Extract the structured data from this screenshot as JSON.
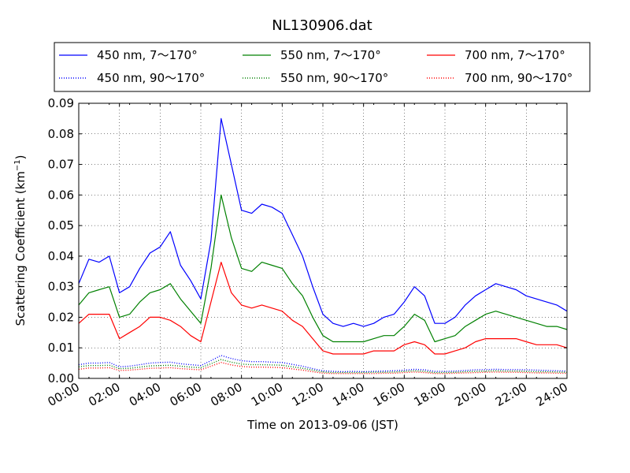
{
  "chart_data": {
    "type": "line",
    "title": "NL130906.dat",
    "xlabel": "Time on 2013-09-06 (JST)",
    "ylabel": "Scattering Coefficient (km",
    "ylabel_sup": "−1",
    "ylabel_close": ")",
    "xlim": [
      "00:00",
      "24:00"
    ],
    "ylim": [
      0,
      0.09
    ],
    "x_ticks": [
      "00:00",
      "02:00",
      "04:00",
      "06:00",
      "08:00",
      "10:00",
      "12:00",
      "14:00",
      "16:00",
      "18:00",
      "20:00",
      "22:00",
      "24:00"
    ],
    "y_ticks": [
      "0.00",
      "0.01",
      "0.02",
      "0.03",
      "0.04",
      "0.05",
      "0.06",
      "0.07",
      "0.08",
      "0.09"
    ],
    "grid": true,
    "legend_position": "top-center",
    "x": [
      "00:00",
      "00:30",
      "01:00",
      "01:30",
      "02:00",
      "02:30",
      "03:00",
      "03:30",
      "04:00",
      "04:30",
      "05:00",
      "05:30",
      "06:00",
      "06:30",
      "07:00",
      "07:30",
      "08:00",
      "08:30",
      "09:00",
      "09:30",
      "10:00",
      "10:30",
      "11:00",
      "11:30",
      "12:00",
      "12:30",
      "13:00",
      "13:30",
      "14:00",
      "14:30",
      "15:00",
      "15:30",
      "16:00",
      "16:30",
      "17:00",
      "17:30",
      "18:00",
      "18:30",
      "19:00",
      "19:30",
      "20:00",
      "20:30",
      "21:00",
      "21:30",
      "22:00",
      "22:30",
      "23:00",
      "23:30",
      "24:00"
    ],
    "series": [
      {
        "name": "450 nm, 7～170°",
        "color": "#0000ff",
        "style": "solid",
        "values": [
          0.031,
          0.039,
          0.038,
          0.04,
          0.028,
          0.03,
          0.036,
          0.041,
          0.043,
          0.048,
          0.037,
          0.032,
          0.026,
          0.045,
          0.085,
          0.07,
          0.055,
          0.054,
          0.057,
          0.056,
          0.054,
          0.047,
          0.04,
          0.03,
          0.021,
          0.018,
          0.017,
          0.018,
          0.017,
          0.018,
          0.02,
          0.021,
          0.025,
          0.03,
          0.027,
          0.018,
          0.018,
          0.02,
          0.024,
          0.027,
          0.029,
          0.031,
          0.03,
          0.029,
          0.027,
          0.026,
          0.025,
          0.024,
          0.022
        ]
      },
      {
        "name": "550 nm, 7～170°",
        "color": "#008000",
        "style": "solid",
        "values": [
          0.024,
          0.028,
          0.029,
          0.03,
          0.02,
          0.021,
          0.025,
          0.028,
          0.029,
          0.031,
          0.026,
          0.022,
          0.018,
          0.036,
          0.06,
          0.046,
          0.036,
          0.035,
          0.038,
          0.037,
          0.036,
          0.031,
          0.027,
          0.02,
          0.014,
          0.012,
          0.012,
          0.012,
          0.012,
          0.013,
          0.014,
          0.014,
          0.017,
          0.021,
          0.019,
          0.012,
          0.013,
          0.014,
          0.017,
          0.019,
          0.021,
          0.022,
          0.021,
          0.02,
          0.019,
          0.018,
          0.017,
          0.017,
          0.016
        ]
      },
      {
        "name": "700 nm, 7～170°",
        "color": "#ff0000",
        "style": "solid",
        "values": [
          0.018,
          0.021,
          0.021,
          0.021,
          0.013,
          0.015,
          0.017,
          0.02,
          0.02,
          0.019,
          0.017,
          0.014,
          0.012,
          0.025,
          0.038,
          0.028,
          0.024,
          0.023,
          0.024,
          0.023,
          0.022,
          0.019,
          0.017,
          0.013,
          0.009,
          0.008,
          0.008,
          0.008,
          0.008,
          0.009,
          0.009,
          0.009,
          0.011,
          0.012,
          0.011,
          0.008,
          0.008,
          0.009,
          0.01,
          0.012,
          0.013,
          0.013,
          0.013,
          0.013,
          0.012,
          0.011,
          0.011,
          0.011,
          0.01
        ]
      },
      {
        "name": "450 nm, 90～170°",
        "color": "#0000ff",
        "style": "dotted",
        "values": [
          0.0045,
          0.005,
          0.005,
          0.0052,
          0.0038,
          0.004,
          0.0045,
          0.005,
          0.0052,
          0.0053,
          0.0048,
          0.0045,
          0.0042,
          0.0058,
          0.0075,
          0.0065,
          0.0058,
          0.0055,
          0.0055,
          0.0053,
          0.0052,
          0.0046,
          0.004,
          0.0032,
          0.0025,
          0.0023,
          0.0022,
          0.0023,
          0.0022,
          0.0023,
          0.0024,
          0.0025,
          0.0027,
          0.003,
          0.0028,
          0.0023,
          0.0023,
          0.0024,
          0.0026,
          0.0028,
          0.0029,
          0.003,
          0.0029,
          0.0029,
          0.0028,
          0.0027,
          0.0026,
          0.0025,
          0.0024
        ]
      },
      {
        "name": "550 nm, 90～170°",
        "color": "#008000",
        "style": "dotted",
        "values": [
          0.0038,
          0.0042,
          0.0042,
          0.0043,
          0.0032,
          0.0033,
          0.0037,
          0.0041,
          0.0042,
          0.0043,
          0.004,
          0.0037,
          0.0035,
          0.0048,
          0.0062,
          0.0053,
          0.0047,
          0.0045,
          0.0045,
          0.0044,
          0.0043,
          0.0038,
          0.0033,
          0.0027,
          0.0021,
          0.0019,
          0.0019,
          0.0019,
          0.0019,
          0.002,
          0.002,
          0.0021,
          0.0023,
          0.0025,
          0.0023,
          0.0019,
          0.0019,
          0.002,
          0.0022,
          0.0023,
          0.0024,
          0.0025,
          0.0024,
          0.0024,
          0.0023,
          0.0022,
          0.0022,
          0.0021,
          0.002
        ]
      },
      {
        "name": "700 nm, 90～170°",
        "color": "#ff0000",
        "style": "dotted",
        "values": [
          0.003,
          0.0034,
          0.0034,
          0.0035,
          0.0026,
          0.0027,
          0.003,
          0.0033,
          0.0034,
          0.0035,
          0.0032,
          0.003,
          0.0028,
          0.004,
          0.0052,
          0.0044,
          0.0039,
          0.0037,
          0.0037,
          0.0036,
          0.0035,
          0.0031,
          0.0027,
          0.0022,
          0.0017,
          0.0016,
          0.0016,
          0.0016,
          0.0016,
          0.0016,
          0.0017,
          0.0017,
          0.0019,
          0.0021,
          0.0019,
          0.0016,
          0.0016,
          0.0017,
          0.0018,
          0.0019,
          0.002,
          0.0021,
          0.002,
          0.002,
          0.0019,
          0.0018,
          0.0018,
          0.0017,
          0.0017
        ]
      }
    ]
  }
}
